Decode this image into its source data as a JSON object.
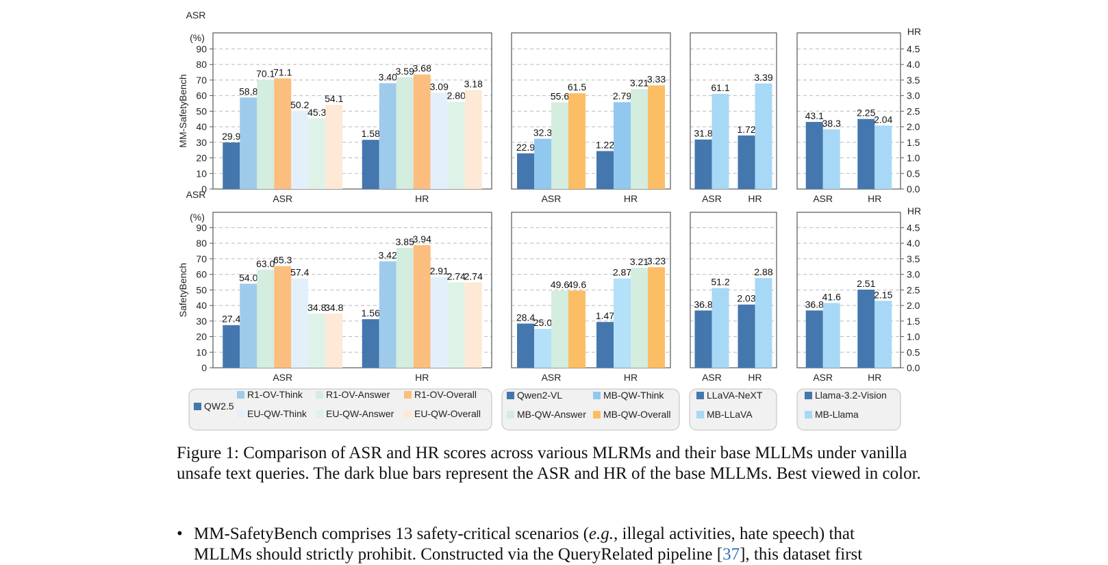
{
  "chart_data": {
    "type": "bar",
    "rows": [
      {
        "ylabel": "MM-SafetyBench",
        "groups": [
          {
            "series": [
              "QW2.5",
              "R1-OV-Think",
              "R1-OV-Answer",
              "R1-OV-Overall",
              "EU-QW-Think",
              "EU-QW-Answer",
              "EU-QW-Overall"
            ],
            "asr": [
              29.9,
              58.8,
              70.1,
              71.1,
              50.2,
              45.3,
              54.1
            ],
            "asr_labels": [
              "29.9",
              "58.8",
              "70.1",
              "71.1",
              "50.2",
              "45.3",
              "54.1"
            ],
            "hr": [
              1.58,
              3.4,
              3.59,
              3.68,
              3.09,
              2.8,
              3.18
            ],
            "hr_labels": [
              "1.58",
              "3.40",
              "3.59",
              "3.68",
              "3.09",
              "2.80",
              "3.18"
            ]
          },
          {
            "series": [
              "Qwen2-VL",
              "MB-QW-Think",
              "MB-QW-Answer",
              "MB-QW-Overall"
            ],
            "asr": [
              22.9,
              32.3,
              55.6,
              61.5
            ],
            "asr_labels": [
              "22.9",
              "32.3",
              "55.6",
              "61.5"
            ],
            "hr": [
              1.22,
              2.79,
              3.21,
              3.33
            ],
            "hr_labels": [
              "1.22",
              "2.79",
              "3.21",
              "3.33"
            ]
          },
          {
            "series": [
              "LLaVA-NeXT",
              "MB-LLaVA"
            ],
            "asr": [
              31.8,
              61.1
            ],
            "asr_labels": [
              "31.8",
              "61.1"
            ],
            "hr": [
              1.72,
              3.39
            ],
            "hr_labels": [
              "1.72",
              "3.39"
            ]
          },
          {
            "series": [
              "Llama-3.2-Vision",
              "MB-Llama"
            ],
            "asr": [
              43.1,
              38.3
            ],
            "asr_labels": [
              "43.1",
              "38.3"
            ],
            "hr": [
              2.25,
              2.04
            ],
            "hr_labels": [
              "2.25",
              "2.04"
            ]
          }
        ]
      },
      {
        "ylabel": "SafetyBench",
        "groups": [
          {
            "series": [
              "QW2.5",
              "R1-OV-Think",
              "R1-OV-Answer",
              "R1-OV-Overall",
              "EU-QW-Think",
              "EU-QW-Answer",
              "EU-QW-Overall"
            ],
            "asr": [
              27.4,
              54.0,
              63.0,
              65.3,
              57.4,
              34.8,
              34.8
            ],
            "asr_labels": [
              "27.4",
              "54.0",
              "63.0",
              "65.3",
              "57.4",
              "34.8",
              "34.8"
            ],
            "hr": [
              1.56,
              3.42,
              3.85,
              3.94,
              2.91,
              2.74,
              2.74
            ],
            "hr_labels": [
              "1.56",
              "3.42",
              "3.85",
              "3.94",
              "2.91",
              "2.74",
              "2.74"
            ]
          },
          {
            "series": [
              "Qwen2-VL",
              "MB-QW-Think",
              "MB-QW-Answer",
              "MB-QW-Overall"
            ],
            "asr": [
              28.4,
              25.0,
              49.6,
              49.6
            ],
            "asr_labels": [
              "28.4",
              "25.0",
              "49.6",
              "49.6"
            ],
            "hr": [
              1.47,
              2.87,
              3.21,
              3.23
            ],
            "hr_labels": [
              "1.47",
              "2.87",
              "3.21",
              "3.23"
            ]
          },
          {
            "series": [
              "LLaVA-NeXT",
              "MB-LLaVA"
            ],
            "asr": [
              36.8,
              51.2
            ],
            "asr_labels": [
              "36.8",
              "51.2"
            ],
            "hr": [
              2.03,
              2.88
            ],
            "hr_labels": [
              "2.03",
              "2.88"
            ]
          },
          {
            "series": [
              "Llama-3.2-Vision",
              "MB-Llama"
            ],
            "asr": [
              36.8,
              41.6
            ],
            "asr_labels": [
              "36.8",
              "41.6"
            ],
            "hr": [
              2.51,
              2.15
            ],
            "hr_labels": [
              "2.51",
              "2.15"
            ]
          }
        ]
      }
    ],
    "categories": [
      "ASR",
      "HR"
    ],
    "left_axis": {
      "title": [
        "ASR",
        "(%)"
      ],
      "range": [
        0,
        100
      ],
      "ticks": [
        0,
        10,
        20,
        30,
        40,
        50,
        60,
        70,
        80,
        90
      ]
    },
    "right_axis": {
      "title": "HR",
      "range": [
        0,
        5
      ],
      "ticks": [
        "0.0",
        "0.5",
        "1.0",
        "1.5",
        "2.0",
        "2.5",
        "3.0",
        "3.5",
        "4.0",
        "4.5"
      ]
    },
    "grid": "dashed-horizontal",
    "legend_position": "bottom",
    "series_colors": {
      "QW2.5": "#4477ad",
      "R1-OV-Think": "#9fcbeb",
      "R1-OV-Answer": "#d3eddf",
      "R1-OV-Overall": "#fcbe7e",
      "EU-QW-Think": "#e3f0fb",
      "EU-QW-Answer": "#dff2e8",
      "EU-QW-Overall": "#fde9d5",
      "Qwen2-VL": "#4477ad",
      "MB-QW-Think": "#91c8ef",
      "MB-QW-Answer": "#d3eddf",
      "MB-QW-Overall": "#fcbe64",
      "LLaVA-NeXT": "#4477ad",
      "MB-LLaVA": "#a7d8f6",
      "Llama-3.2-Vision": "#4477ad",
      "MB-Llama": "#a7d8f6"
    },
    "row_overrides": {
      "SafetyBench": {
        "MB-QW-Think": "#b4e0fa",
        "EU-QW-Think": "#e3f0fb"
      }
    },
    "legend_groups": [
      {
        "items": [
          "QW2.5",
          "R1-OV-Think",
          "R1-OV-Answer",
          "R1-OV-Overall",
          "EU-QW-Think",
          "EU-QW-Answer",
          "EU-QW-Overall"
        ]
      },
      {
        "items": [
          "Qwen2-VL",
          "MB-QW-Think",
          "MB-QW-Answer",
          "MB-QW-Overall"
        ]
      },
      {
        "items": [
          "LLaVA-NeXT",
          "MB-LLaVA"
        ]
      },
      {
        "items": [
          "Llama-3.2-Vision",
          "MB-Llama"
        ]
      }
    ]
  },
  "caption": "Figure 1: Comparison of ASR and HR scores across various MLRMs and their base MLLMs under vanilla unsafe text queries. The dark blue bars represent the ASR and HR of the base MLLMs. Best viewed in color.",
  "bullet": {
    "symbol": "•",
    "text_before": "MM-SafetyBench comprises 13 safety-critical scenarios (",
    "italic": "e.g.,",
    "text_middle": " illegal activities, hate speech) that",
    "line2_before": "MLLMs should strictly prohibit. Constructed via the QueryRelated pipeline [",
    "cite": "37",
    "line2_after": "], this dataset first"
  }
}
